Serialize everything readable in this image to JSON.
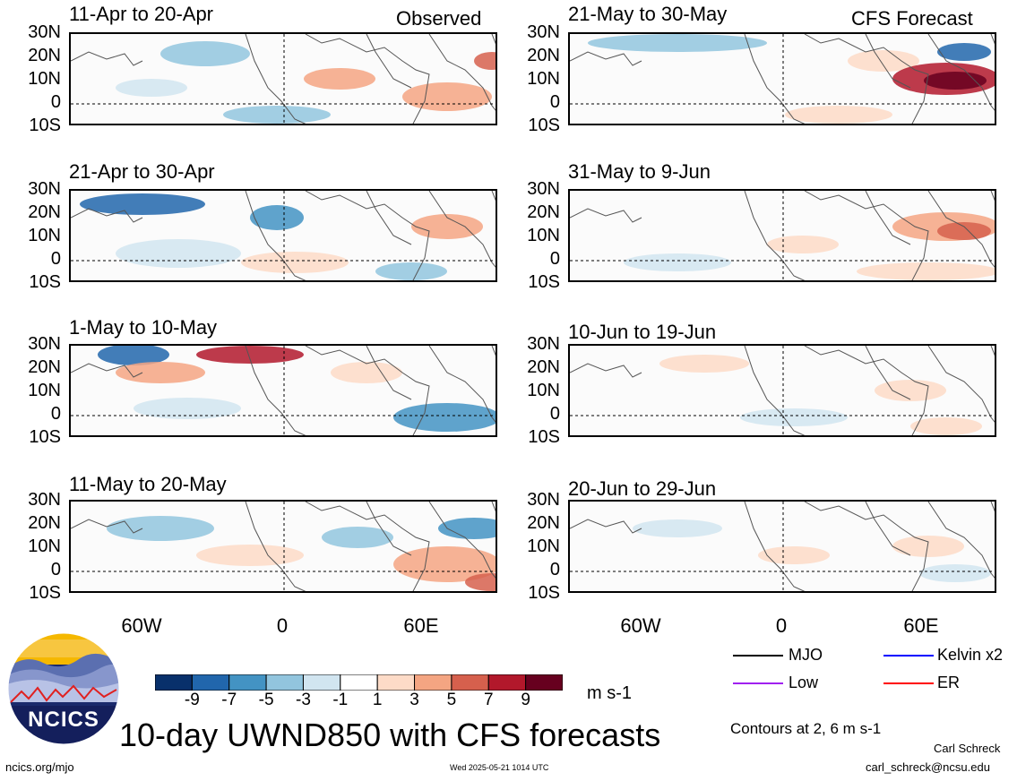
{
  "columns": {
    "left_title": "Observed",
    "right_title": "CFS Forecast"
  },
  "panels": [
    {
      "title": "11-Apr to 20-Apr",
      "column": "left"
    },
    {
      "title": "21-Apr to 30-Apr",
      "column": "left"
    },
    {
      "title": "1-May to 10-May",
      "column": "left"
    },
    {
      "title": "11-May to 20-May",
      "column": "left"
    },
    {
      "title": "21-May to 30-May",
      "column": "right"
    },
    {
      "title": "31-May to 9-Jun",
      "column": "right"
    },
    {
      "title": "10-Jun to 19-Jun",
      "column": "right"
    },
    {
      "title": "20-Jun to 29-Jun",
      "column": "right"
    }
  ],
  "lat_labels": [
    "30N",
    "20N",
    "10N",
    "0",
    "10S"
  ],
  "lon_labels": [
    "60W",
    "0",
    "60E"
  ],
  "colorbar": {
    "ticks": [
      "-9",
      "-7",
      "-5",
      "-3",
      "-1",
      "1",
      "3",
      "5",
      "7",
      "9"
    ],
    "colors": [
      "#08306b",
      "#2166ac",
      "#4393c3",
      "#92c5de",
      "#d1e5f0",
      "#ffffff",
      "#fddbc7",
      "#f4a582",
      "#d6604d",
      "#b2182b",
      "#67001f"
    ],
    "units": "m s-1"
  },
  "legend": {
    "items": [
      {
        "label": "MJO",
        "color": "#000000"
      },
      {
        "label": "Kelvin x2",
        "color": "#0000ff"
      },
      {
        "label": "Low",
        "color": "#a020f0"
      },
      {
        "label": "ER",
        "color": "#ff0000"
      }
    ],
    "contours_note": "Contours at 2, 6 m s-1"
  },
  "main_title": "10-day UWND850 with CFS forecasts",
  "logo_text": "NCICS",
  "footer": {
    "url": "ncics.org/mjo",
    "timestamp": "Wed 2025-05-21 1014 UTC",
    "author": "Carl Schreck",
    "email": "carl_schreck@ncsu.edu"
  }
}
